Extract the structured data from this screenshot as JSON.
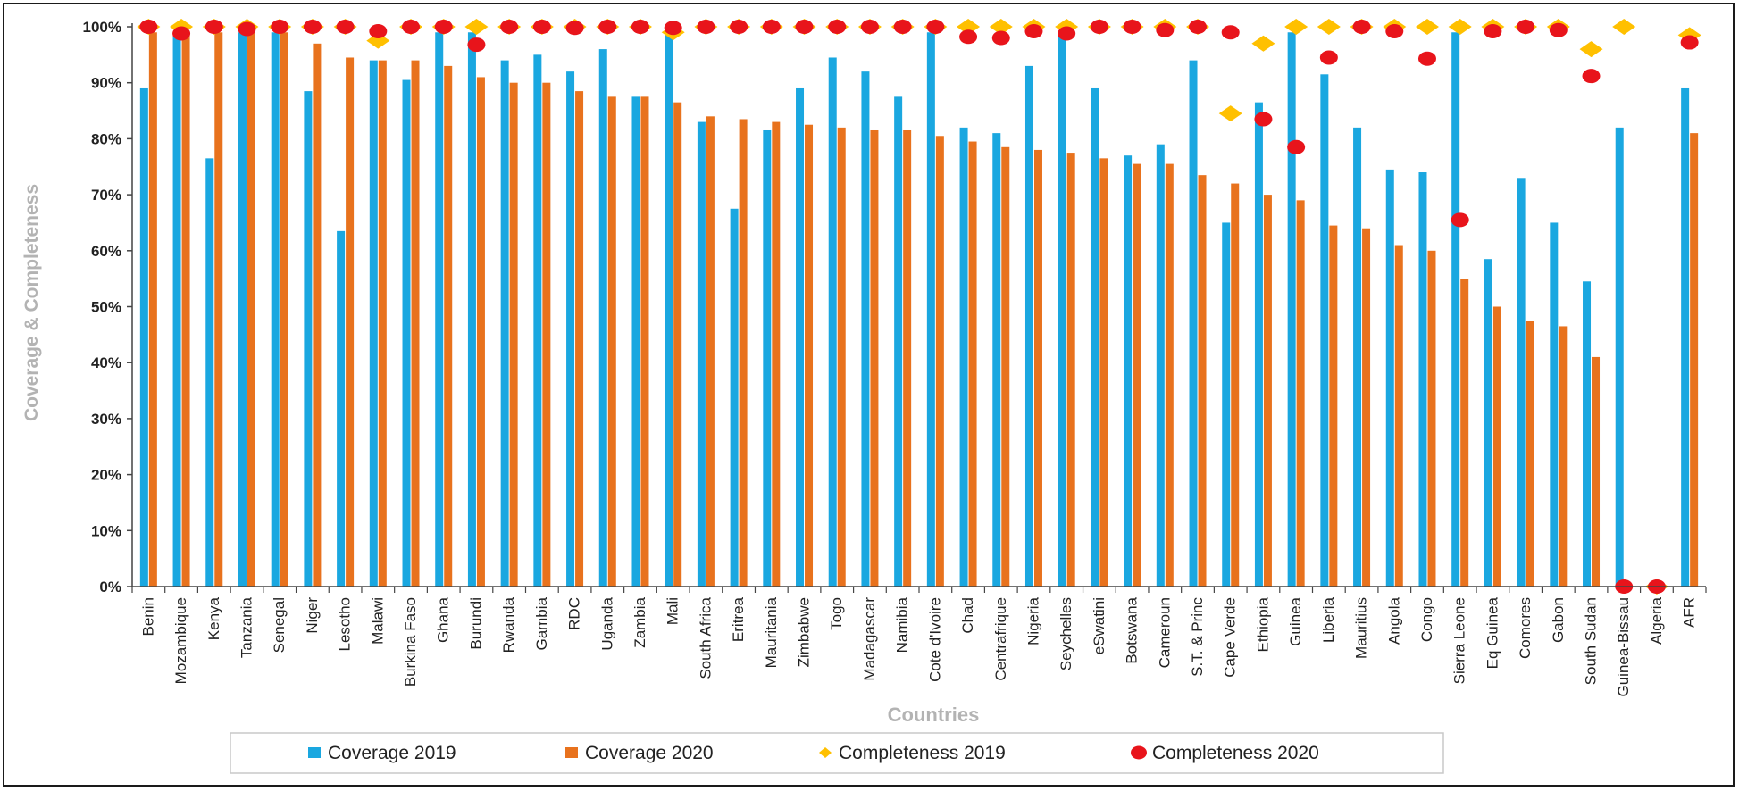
{
  "chart_data": {
    "type": "bar",
    "title": "",
    "xlabel": "Countries",
    "ylabel": "Coverage & Completeness",
    "ylim": [
      0,
      100
    ],
    "yticks": [
      "0%",
      "10%",
      "20%",
      "30%",
      "40%",
      "50%",
      "60%",
      "70%",
      "80%",
      "90%",
      "100%"
    ],
    "categories": [
      "Benin",
      "Mozambique",
      "Kenya",
      "Tanzania",
      "Senegal",
      "Niger",
      "Lesotho",
      "Malawi",
      "Burkina Faso",
      "Ghana",
      "Burundi",
      "Rwanda",
      "Gambia",
      "RDC",
      "Uganda",
      "Zambia",
      "Mali",
      "South Africa",
      "Eritrea",
      "Mauritania",
      "Zimbabwe",
      "Togo",
      "Madagascar",
      "Namibia",
      "Cote d'Ivoire",
      "Chad",
      "Centrafrique",
      "Nigeria",
      "Seychelles",
      "eSwatini",
      "Botswana",
      "Cameroun",
      "S.T. & Princ",
      "Cape Verde",
      "Ethiopia",
      "Guinea",
      "Liberia",
      "Mauritius",
      "Angola",
      "Congo",
      "Sierra Leone",
      "Eq Guinea",
      "Comores",
      "Gabon",
      "South Sudan",
      "Guinea-Bissau",
      "Algeria",
      "AFR"
    ],
    "series": [
      {
        "name": "Coverage 2019",
        "kind": "bar",
        "color": "#1aa7e0",
        "values": [
          89,
          99,
          76.5,
          99,
          99,
          88.5,
          63.5,
          94,
          90.5,
          99,
          99,
          94,
          95,
          92,
          96,
          87.5,
          99,
          83,
          67.5,
          81.5,
          89,
          94.5,
          92,
          87.5,
          99,
          82,
          81,
          93,
          99,
          89,
          77,
          79,
          94,
          65,
          86.5,
          99,
          91.5,
          82,
          74.5,
          74,
          99,
          58.5,
          73,
          65,
          54.5,
          82,
          0,
          89
        ]
      },
      {
        "name": "Coverage 2020",
        "kind": "bar",
        "color": "#e8721d",
        "values": [
          99,
          99,
          99,
          99,
          99,
          97,
          94.5,
          94,
          94,
          93,
          91,
          90,
          90,
          88.5,
          87.5,
          87.5,
          86.5,
          84,
          83.5,
          83,
          82.5,
          82,
          81.5,
          81.5,
          80.5,
          79.5,
          78.5,
          78,
          77.5,
          76.5,
          75.5,
          75.5,
          73.5,
          72,
          70,
          69,
          64.5,
          64,
          61,
          60,
          55,
          50,
          47.5,
          46.5,
          41,
          0,
          0,
          81
        ]
      },
      {
        "name": "Completeness 2019",
        "kind": "diamond",
        "color": "#ffc000",
        "values": [
          100,
          100,
          100,
          100,
          100,
          100,
          100,
          97.5,
          100,
          100,
          100,
          100,
          100,
          100,
          100,
          100,
          99,
          100,
          100,
          100,
          100,
          100,
          100,
          100,
          100,
          100,
          100,
          100,
          100,
          100,
          100,
          100,
          100,
          84.5,
          97,
          100,
          100,
          100,
          100,
          100,
          100,
          100,
          100,
          100,
          96,
          100,
          0,
          98.5
        ]
      },
      {
        "name": "Completeness 2020",
        "kind": "dot",
        "color": "#e8141b",
        "values": [
          100,
          98.8,
          100,
          99.6,
          100,
          100,
          100,
          99.2,
          100,
          100,
          96.8,
          100,
          100,
          99.8,
          100,
          100,
          99.8,
          100,
          100,
          100,
          100,
          100,
          100,
          100,
          100,
          98.2,
          98,
          99.2,
          98.8,
          100,
          100,
          99.4,
          100,
          99,
          83.5,
          78.5,
          94.5,
          100,
          99.2,
          94.3,
          65.5,
          99.2,
          100,
          99.4,
          91.2,
          0,
          0,
          97.2
        ]
      }
    ],
    "grid": false,
    "legend": "bottom"
  }
}
